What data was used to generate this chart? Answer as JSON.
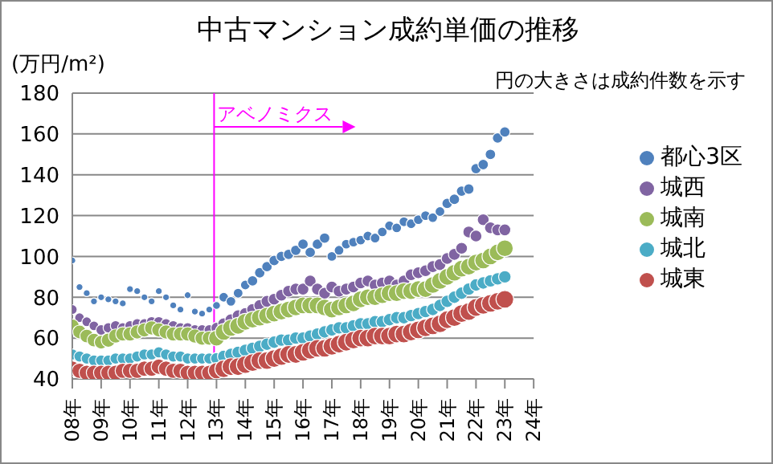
{
  "chart_data": {
    "type": "bubble",
    "title": "中古マンション成約単価の推移",
    "ylabel": "(万円/m²)",
    "annotations": [
      "円の大きさは成約件数を示す"
    ],
    "x": [
      "2008-01",
      "2008-04",
      "2008-07",
      "2008-10",
      "2009-01",
      "2009-04",
      "2009-07",
      "2009-10",
      "2010-01",
      "2010-04",
      "2010-07",
      "2010-10",
      "2011-01",
      "2011-04",
      "2011-07",
      "2011-10",
      "2012-01",
      "2012-04",
      "2012-07",
      "2012-10",
      "2013-01",
      "2013-04",
      "2013-07",
      "2013-10",
      "2014-01",
      "2014-04",
      "2014-07",
      "2014-10",
      "2015-01",
      "2015-04",
      "2015-07",
      "2015-10",
      "2016-01",
      "2016-04",
      "2016-07",
      "2016-10",
      "2017-01",
      "2017-04",
      "2017-07",
      "2017-10",
      "2018-01",
      "2018-04",
      "2018-07",
      "2018-10",
      "2019-01",
      "2019-04",
      "2019-07",
      "2019-10",
      "2020-01",
      "2020-04",
      "2020-07",
      "2020-10",
      "2021-01",
      "2021-04",
      "2021-07",
      "2021-10",
      "2022-01",
      "2022-04",
      "2022-07",
      "2022-10",
      "2023-01"
    ],
    "xlim": [
      "2008",
      "2024"
    ],
    "xticks": [
      {
        "value": "2008",
        "label": "08年"
      },
      {
        "value": "2009",
        "label": "09年"
      },
      {
        "value": "2010",
        "label": "10年"
      },
      {
        "value": "2011",
        "label": "11年"
      },
      {
        "value": "2012",
        "label": "12年"
      },
      {
        "value": "2013",
        "label": "13年"
      },
      {
        "value": "2014",
        "label": "14年"
      },
      {
        "value": "2015",
        "label": "15年"
      },
      {
        "value": "2016",
        "label": "16年"
      },
      {
        "value": "2017",
        "label": "17年"
      },
      {
        "value": "2018",
        "label": "18年"
      },
      {
        "value": "2019",
        "label": "19年"
      },
      {
        "value": "2020",
        "label": "20年"
      },
      {
        "value": "2021",
        "label": "21年"
      },
      {
        "value": "2022",
        "label": "22年"
      },
      {
        "value": "2023",
        "label": "23年"
      },
      {
        "value": "2024",
        "label": "24年"
      }
    ],
    "ylim": [
      40,
      180
    ],
    "yticks": [
      40,
      60,
      80,
      100,
      120,
      140,
      160,
      180
    ],
    "grid": "y",
    "legend": "right",
    "marker": "circle",
    "ref_lines": [
      {
        "axis": "x",
        "value": "2012-12",
        "label": "アベノミクス",
        "color": "#ff00ff"
      }
    ],
    "series": [
      {
        "name": "都心3区",
        "color": "#4f81bd",
        "values": [
          98,
          85,
          82,
          78,
          80,
          79,
          78,
          77,
          84,
          83,
          80,
          78,
          83,
          80,
          76,
          74,
          81,
          73,
          72,
          74,
          76,
          80,
          78,
          82,
          86,
          88,
          92,
          95,
          98,
          100,
          101,
          103,
          106,
          102,
          106,
          109,
          100,
          103,
          106,
          107,
          108,
          110,
          109,
          112,
          115,
          114,
          117,
          116,
          118,
          120,
          119,
          122,
          126,
          128,
          132,
          133,
          143,
          145,
          150,
          158,
          161
        ],
        "sizes": [
          0.15,
          0.15,
          0.15,
          0.15,
          0.15,
          0.15,
          0.15,
          0.15,
          0.15,
          0.15,
          0.15,
          0.15,
          0.15,
          0.15,
          0.15,
          0.15,
          0.15,
          0.15,
          0.15,
          0.15,
          0.2,
          0.3,
          0.3,
          0.3,
          0.3,
          0.35,
          0.35,
          0.35,
          0.35,
          0.35,
          0.35,
          0.35,
          0.35,
          0.35,
          0.35,
          0.35,
          0.3,
          0.3,
          0.3,
          0.3,
          0.3,
          0.3,
          0.3,
          0.3,
          0.3,
          0.3,
          0.3,
          0.3,
          0.3,
          0.3,
          0.3,
          0.3,
          0.35,
          0.35,
          0.35,
          0.35,
          0.35,
          0.35,
          0.35,
          0.35,
          0.35
        ]
      },
      {
        "name": "城西",
        "color": "#8064a2",
        "values": [
          74,
          70,
          68,
          66,
          64,
          65,
          66,
          65,
          66,
          67,
          67,
          68,
          68,
          67,
          66,
          65,
          65,
          64,
          64,
          64,
          65,
          67,
          69,
          71,
          72,
          74,
          76,
          78,
          79,
          81,
          83,
          84,
          84,
          88,
          84,
          82,
          85,
          83,
          84,
          85,
          87,
          88,
          86,
          87,
          88,
          86,
          88,
          91,
          92,
          93,
          95,
          96,
          99,
          101,
          104,
          112,
          110,
          118,
          114,
          113,
          113
        ],
        "sizes": [
          0.3,
          0.3,
          0.3,
          0.3,
          0.35,
          0.35,
          0.35,
          0.35,
          0.35,
          0.35,
          0.35,
          0.35,
          0.35,
          0.35,
          0.35,
          0.35,
          0.35,
          0.35,
          0.35,
          0.35,
          0.4,
          0.45,
          0.45,
          0.45,
          0.45,
          0.45,
          0.45,
          0.45,
          0.45,
          0.45,
          0.45,
          0.45,
          0.45,
          0.45,
          0.45,
          0.45,
          0.45,
          0.45,
          0.45,
          0.45,
          0.45,
          0.45,
          0.45,
          0.45,
          0.45,
          0.45,
          0.45,
          0.45,
          0.45,
          0.45,
          0.45,
          0.45,
          0.45,
          0.45,
          0.45,
          0.45,
          0.45,
          0.45,
          0.45,
          0.45,
          0.45
        ]
      },
      {
        "name": "城南",
        "color": "#9bbb59",
        "values": [
          66,
          63,
          61,
          59,
          58,
          59,
          61,
          62,
          62,
          63,
          64,
          65,
          64,
          63,
          62,
          62,
          62,
          61,
          60,
          60,
          60,
          63,
          65,
          66,
          68,
          69,
          70,
          71,
          72,
          73,
          74,
          75,
          76,
          76,
          76,
          75,
          74,
          75,
          76,
          77,
          79,
          80,
          80,
          81,
          82,
          82,
          83,
          83,
          84,
          84,
          86,
          88,
          90,
          92,
          94,
          95,
          97,
          98,
          100,
          102,
          104
        ],
        "sizes": [
          0.6,
          0.6,
          0.6,
          0.6,
          0.6,
          0.65,
          0.65,
          0.65,
          0.65,
          0.65,
          0.65,
          0.65,
          0.65,
          0.65,
          0.65,
          0.65,
          0.65,
          0.65,
          0.65,
          0.65,
          0.8,
          0.9,
          0.9,
          0.9,
          0.9,
          0.9,
          0.9,
          0.9,
          0.9,
          0.9,
          0.9,
          0.9,
          0.9,
          0.9,
          0.9,
          0.9,
          0.9,
          0.9,
          0.9,
          0.9,
          0.9,
          0.9,
          0.9,
          0.9,
          0.9,
          0.9,
          0.9,
          0.9,
          0.9,
          0.9,
          0.9,
          0.9,
          0.9,
          0.9,
          0.9,
          0.9,
          0.9,
          0.9,
          0.9,
          0.9,
          0.9
        ]
      },
      {
        "name": "城北",
        "color": "#4bacc6",
        "values": [
          52,
          51,
          50,
          49,
          49,
          49,
          50,
          50,
          50,
          51,
          52,
          52,
          53,
          52,
          51,
          51,
          50,
          50,
          50,
          50,
          50,
          51,
          52,
          53,
          54,
          55,
          56,
          57,
          58,
          59,
          59,
          60,
          60,
          61,
          62,
          63,
          64,
          65,
          65,
          66,
          67,
          67,
          68,
          68,
          69,
          70,
          70,
          71,
          72,
          73,
          74,
          76,
          78,
          80,
          82,
          84,
          86,
          87,
          88,
          89,
          90
        ],
        "sizes": [
          0.4,
          0.4,
          0.4,
          0.4,
          0.4,
          0.4,
          0.4,
          0.4,
          0.4,
          0.4,
          0.4,
          0.4,
          0.4,
          0.4,
          0.4,
          0.4,
          0.4,
          0.4,
          0.4,
          0.4,
          0.45,
          0.5,
          0.5,
          0.5,
          0.5,
          0.5,
          0.5,
          0.5,
          0.5,
          0.5,
          0.5,
          0.5,
          0.5,
          0.5,
          0.5,
          0.5,
          0.5,
          0.5,
          0.5,
          0.5,
          0.5,
          0.5,
          0.5,
          0.5,
          0.5,
          0.5,
          0.5,
          0.5,
          0.5,
          0.5,
          0.5,
          0.5,
          0.5,
          0.5,
          0.5,
          0.5,
          0.5,
          0.5,
          0.5,
          0.5,
          0.5
        ]
      },
      {
        "name": "城東",
        "color": "#c0504d",
        "values": [
          45,
          44,
          43,
          43,
          43,
          43,
          43,
          44,
          44,
          44,
          45,
          45,
          46,
          45,
          44,
          44,
          43,
          43,
          43,
          43,
          44,
          45,
          46,
          46,
          47,
          48,
          49,
          49,
          50,
          51,
          52,
          52,
          53,
          54,
          55,
          55,
          56,
          57,
          58,
          59,
          60,
          60,
          61,
          61,
          61,
          62,
          62,
          63,
          64,
          65,
          66,
          67,
          69,
          70,
          72,
          73,
          75,
          76,
          77,
          78,
          79
        ],
        "sizes": [
          0.75,
          0.75,
          0.75,
          0.75,
          0.75,
          0.75,
          0.75,
          0.75,
          0.75,
          0.75,
          0.75,
          0.75,
          0.75,
          0.75,
          0.75,
          0.75,
          0.75,
          0.75,
          0.75,
          0.75,
          0.85,
          1,
          1,
          1,
          1,
          1,
          1,
          1,
          1,
          1,
          1,
          1,
          1,
          1,
          1,
          1,
          1,
          1,
          1,
          1,
          1,
          1,
          1,
          1,
          1,
          1,
          1,
          1,
          1,
          1,
          1,
          1,
          1,
          1,
          1,
          1,
          1,
          1,
          1,
          1,
          1
        ]
      }
    ]
  }
}
